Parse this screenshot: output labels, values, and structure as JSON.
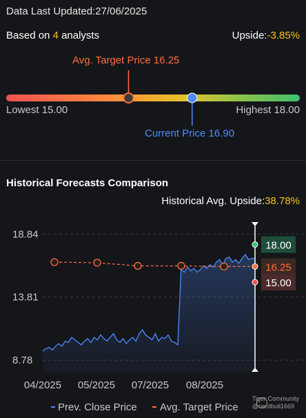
{
  "header": {
    "updated_label": "Data Last Updated:",
    "updated_date": "27/06/2025"
  },
  "summary": {
    "based_prefix": "Based on ",
    "analyst_count": "4",
    "based_suffix": " analysts",
    "upside_label": "Upside:",
    "upside_value": "-3.85%"
  },
  "gauge": {
    "avg_target_label": "Avg. Target Price 16.25",
    "lowest_label": "Lowest 15.00",
    "highest_label": "Highest 18.00",
    "current_label": "Current Price 16.90",
    "low": 15.0,
    "high": 18.0,
    "avg_target": 16.25,
    "current": 16.9,
    "colors": {
      "target": "#ff6d3d",
      "current": "#4d8cff",
      "gradient": [
        "#f05252",
        "#ff8a3d",
        "#e6c229",
        "#8bc34a",
        "#3fbf6f"
      ]
    }
  },
  "historical": {
    "title": "Historical Forecasts Comparison",
    "avg_upside_label": "Historical Avg. Upside:",
    "avg_upside_value": "38.78%"
  },
  "chart_data": {
    "type": "line",
    "y_ticks": [
      "18.84",
      "13.81",
      "8.78"
    ],
    "ylim": [
      7.8,
      19.9
    ],
    "x_ticks": [
      "04/2025",
      "05/2025",
      "07/2025",
      "08/2025"
    ],
    "series": [
      {
        "name": "Prev. Close Price",
        "color": "#4d8cff",
        "values": [
          9.5,
          9.7,
          9.8,
          9.6,
          9.9,
          10.1,
          9.9,
          10.3,
          10.2,
          10.6,
          10.4,
          10.2,
          10.0,
          10.3,
          10.5,
          10.2,
          10.6,
          10.4,
          10.8,
          10.5,
          10.3,
          10.6,
          10.9,
          10.4,
          10.2,
          10.5,
          10.1,
          10.4,
          10.6,
          10.3,
          10.9,
          11.2,
          10.8,
          10.6,
          10.4,
          10.9,
          10.3,
          10.6,
          10.5,
          10.8,
          10.3,
          10.2,
          10.0,
          16.0,
          15.8,
          16.2,
          15.9,
          16.1,
          15.8,
          16.0,
          16.3,
          16.1,
          16.4,
          16.2,
          16.6,
          16.8,
          16.4,
          16.9,
          17.0,
          16.6,
          16.8,
          16.5,
          16.9,
          17.2,
          16.8,
          16.9,
          16.9
        ]
      },
      {
        "name": "Avg. Target Price",
        "color": "#ff6d3d",
        "values": [
          16.6,
          16.55,
          16.3,
          16.3,
          16.25,
          16.25
        ]
      }
    ],
    "badges": [
      {
        "label": "18.00",
        "value": 18.0,
        "bg": "#1e4d3a",
        "color": "#ffffff"
      },
      {
        "label": "16.25",
        "value": 16.25,
        "bg": "#3a2a22",
        "color": "#ff6d3d"
      },
      {
        "label": "15.00",
        "value": 15.0,
        "bg": "#4a2a2a",
        "color": "#ffffff"
      }
    ]
  },
  "legend": {
    "close_label": "Prev. Close Price",
    "target_label": "Avg. Target Price"
  },
  "watermark": {
    "line1": "Tiger Community",
    "line2": "@nerdbull1669"
  }
}
